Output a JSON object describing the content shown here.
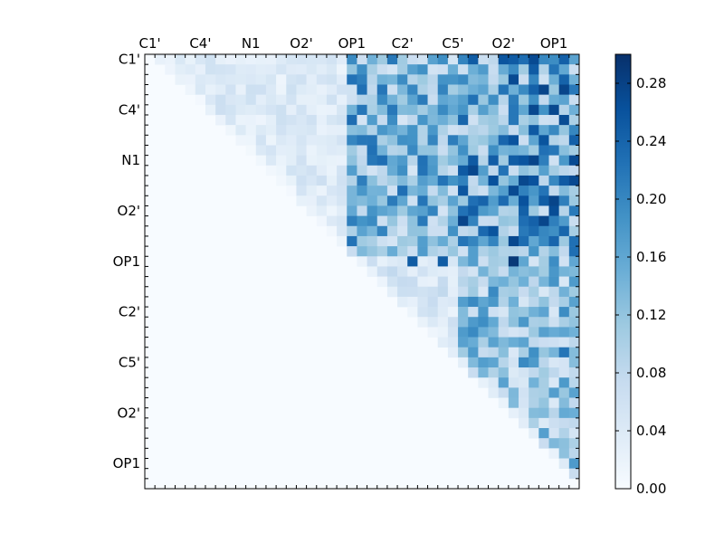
{
  "chart_data": {
    "type": "heatmap",
    "title": "",
    "xlabel": "",
    "ylabel": "",
    "n": 43,
    "upper_triangle_only": true,
    "tick_labels": [
      "C1'",
      "C4'",
      "N1",
      "O2'",
      "OP1",
      "C2'",
      "C5'",
      "O2'",
      "OP1"
    ],
    "tick_indices": [
      0,
      5,
      10,
      15,
      20,
      25,
      30,
      35,
      40
    ],
    "colormap": "Blues",
    "colorbar": {
      "range": [
        0.0,
        0.3
      ],
      "ticks": [
        0.0,
        0.04,
        0.08,
        0.12,
        0.16,
        0.2,
        0.24,
        0.28
      ],
      "tick_labels": [
        "0.00",
        "0.04",
        "0.08",
        "0.12",
        "0.16",
        "0.20",
        "0.24",
        "0.28"
      ]
    },
    "block_boundaries": [
      0,
      20,
      31,
      43
    ],
    "block_mean_values": [
      [
        0.04,
        0.14,
        0.17
      ],
      [
        null,
        0.05,
        0.12
      ],
      [
        null,
        null,
        0.11
      ]
    ],
    "notable_peaks": [
      {
        "row": 20,
        "col": 36,
        "value": 0.29
      },
      {
        "row": 13,
        "col": 36,
        "value": 0.27
      },
      {
        "row": 8,
        "col": 36,
        "value": 0.26
      },
      {
        "row": 20,
        "col": 29,
        "value": 0.25
      },
      {
        "row": 20,
        "col": 26,
        "value": 0.25
      },
      {
        "row": 29,
        "col": 41,
        "value": 0.22
      }
    ]
  }
}
